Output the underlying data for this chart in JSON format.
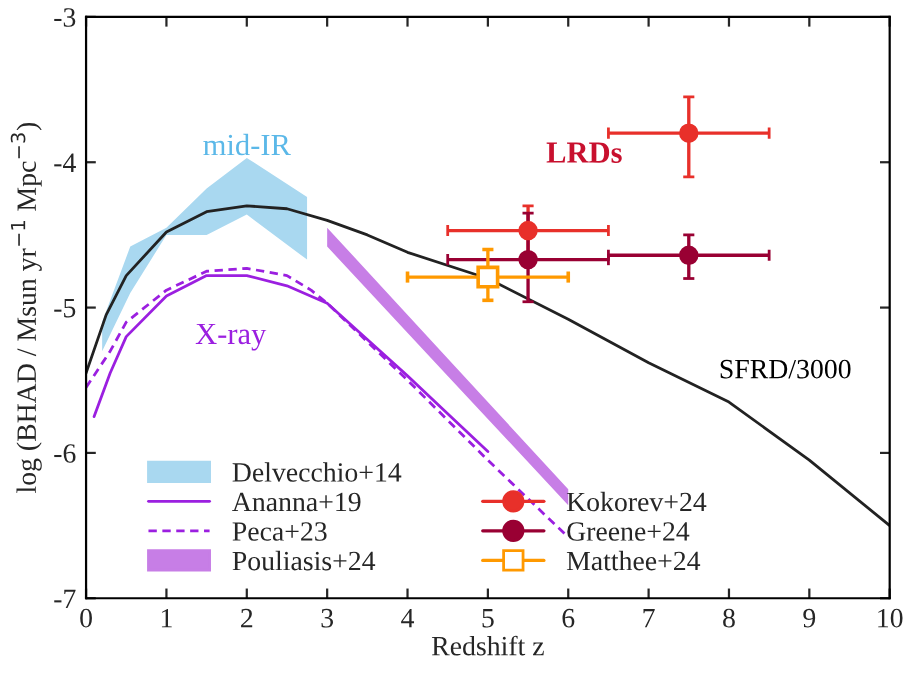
{
  "chart_data": {
    "type": "line",
    "xlabel": "Redshift z",
    "ylabel": "log (BHAD / Msun yr$^{−1}$ Mpc$^{−3}$)",
    "xlim": [
      0,
      10
    ],
    "ylim": [
      -7,
      -3
    ],
    "xticks": [
      0,
      1,
      2,
      3,
      4,
      5,
      6,
      7,
      8,
      9,
      10
    ],
    "yticks": [
      -7,
      -6,
      -5,
      -4,
      -3
    ],
    "grid": false,
    "legend": "bottom",
    "series": [
      {
        "name": "Delvecchio+14",
        "type": "line",
        "color": "#a9d8f0",
        "x": [
          0.2,
          0.55,
          1,
          1.5,
          2,
          2.75
        ],
        "values": [
          null,
          null,
          null,
          null,
          null,
          null
        ],
        "upper": [
          -5.1,
          -4.58,
          -4.45,
          -4.18,
          -3.97,
          -4.24
        ],
        "lower": [
          -5.3,
          -4.9,
          -4.5,
          -4.5,
          -4.36,
          -4.67
        ]
      },
      {
        "name": "Ananna+19",
        "color": "#9b1fe0",
        "line_style": "solid",
        "x": [
          0.1,
          0.3,
          0.5,
          1,
          1.5,
          2,
          2.5,
          3,
          3.5,
          4,
          4.5,
          5
        ],
        "values": [
          -5.75,
          -5.45,
          -5.2,
          -4.92,
          -4.78,
          -4.78,
          -4.85,
          -4.97,
          -5.22,
          -5.47,
          -5.73,
          -5.99
        ]
      },
      {
        "name": "Peca+23",
        "color": "#9b1fe0",
        "line_style": "dashed",
        "x": [
          0,
          0.3,
          0.5,
          1,
          1.5,
          2,
          2.5,
          2.8,
          3,
          4,
          5,
          6
        ],
        "values": [
          -5.55,
          -5.3,
          -5.1,
          -4.88,
          -4.75,
          -4.73,
          -4.78,
          -4.88,
          -4.97,
          -5.5,
          -6.05,
          -6.58
        ]
      },
      {
        "name": "Pouliasis+24",
        "type": "line",
        "color": "#c77ee6",
        "x": [
          3,
          4.5,
          6
        ],
        "values": [
          null,
          null,
          null
        ],
        "upper": [
          -4.45,
          -5.35,
          -6.25
        ],
        "lower": [
          -4.58,
          -5.47,
          -6.36
        ]
      },
      {
        "color": "#222222",
        "line_style": "solid",
        "x": [
          0,
          0.25,
          0.5,
          1,
          1.5,
          2,
          2.5,
          3,
          3.5,
          4,
          5,
          6,
          7,
          8,
          9,
          10
        ],
        "values": [
          -5.45,
          -5.05,
          -4.78,
          -4.48,
          -4.34,
          -4.3,
          -4.32,
          -4.4,
          -4.5,
          -4.62,
          -4.8,
          -5.08,
          -5.38,
          -5.65,
          -6.05,
          -6.5
        ]
      },
      {
        "name": "Kokorev+24",
        "type": "scatter",
        "marker": "circle",
        "color": "#e8302a",
        "x": [
          5.5,
          7.5
        ],
        "values": [
          -4.47,
          -3.8
        ],
        "errors": [
          [
            -4.65,
            -4.3
          ],
          [
            -4.1,
            -3.55
          ]
        ],
        "xerrors": [
          [
            4.5,
            6.5
          ],
          [
            6.5,
            8.5
          ]
        ]
      },
      {
        "name": "Greene+24",
        "type": "scatter",
        "marker": "circle",
        "color": "#990033",
        "x": [
          5.5,
          7.5
        ],
        "values": [
          -4.67,
          -4.64
        ],
        "errors": [
          [
            -4.96,
            -4.35
          ],
          [
            -4.8,
            -4.5
          ]
        ],
        "xerrors": [
          [
            4.5,
            6.5
          ],
          [
            6.5,
            8.5
          ]
        ]
      },
      {
        "name": "Matthee+24",
        "type": "scatter",
        "marker": "square",
        "color": "#ff9900",
        "x": [
          5
        ],
        "values": [
          -4.79
        ],
        "errors": [
          [
            -4.95,
            -4.6
          ]
        ],
        "xerrors": [
          [
            4,
            6
          ]
        ]
      }
    ],
    "annotations": [
      "mid-IR",
      "X-ray",
      "LRDs",
      "SFRD/3000"
    ]
  }
}
